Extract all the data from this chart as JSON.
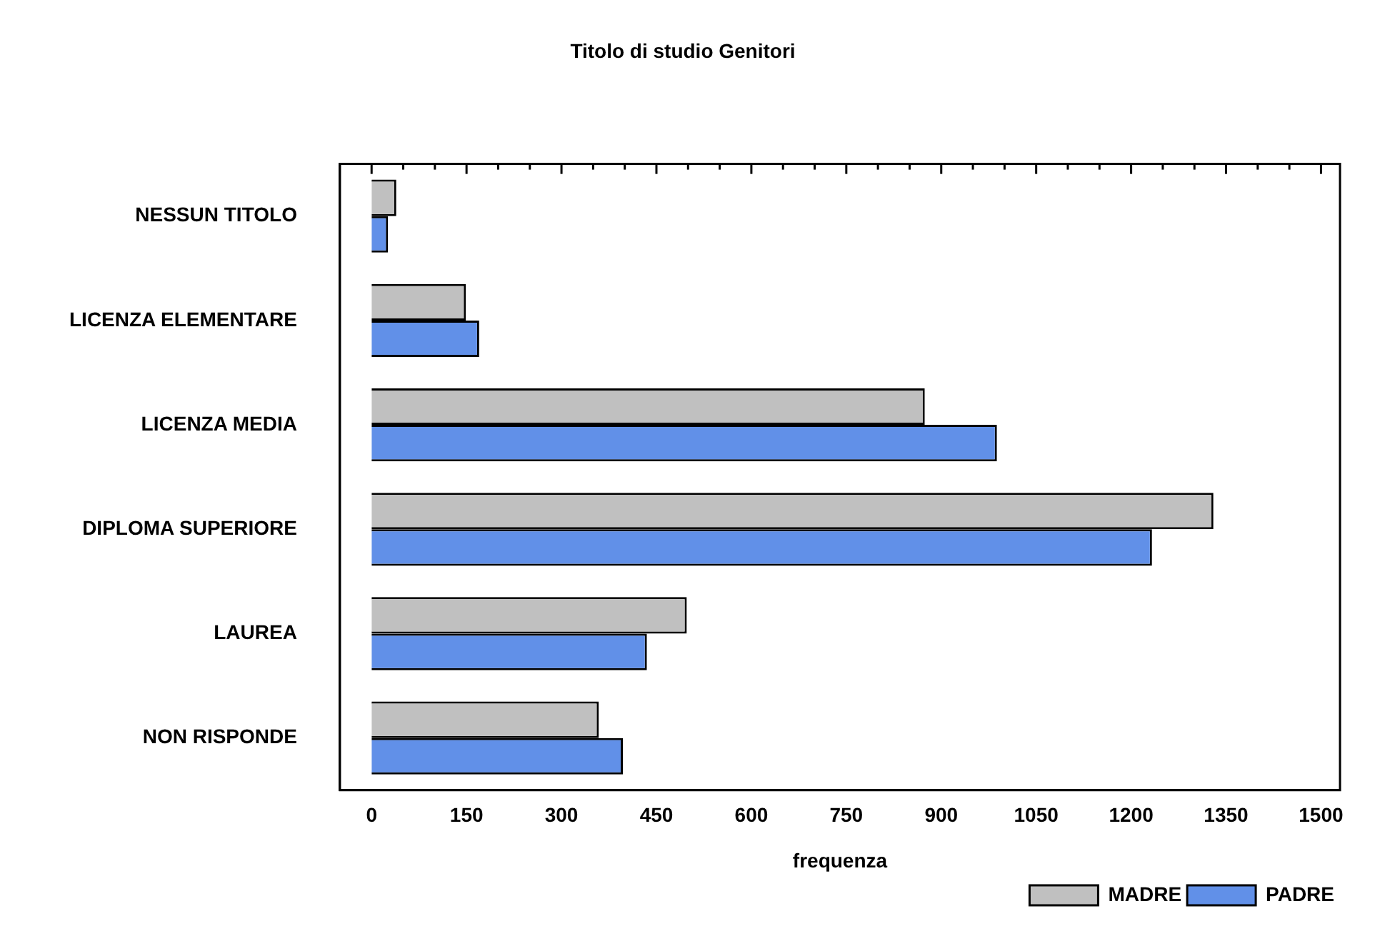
{
  "chart_data": {
    "type": "bar",
    "orientation": "horizontal",
    "title": "Titolo di studio Genitori",
    "xlabel": "frequenza",
    "categories": [
      "NESSUN TITOLO",
      "LICENZA ELEMENTARE",
      "LICENZA MEDIA",
      "DIPLOMA SUPERIORE",
      "LAUREA",
      "NON RISPONDE"
    ],
    "series": [
      {
        "name": "MADRE",
        "color": "#c0c0c0",
        "values": [
          39,
          149,
          874,
          1330,
          498,
          359
        ]
      },
      {
        "name": "PADRE",
        "color": "#6190e8",
        "values": [
          26,
          170,
          988,
          1233,
          435,
          397
        ]
      }
    ],
    "xlim": [
      -50,
      1530
    ],
    "xticks": [
      0,
      {
        "value": 50,
        "label": null
      },
      {
        "value": 100,
        "label": null
      },
      150,
      {
        "value": 200,
        "label": null
      },
      {
        "value": 250,
        "label": null
      },
      300,
      {
        "value": 350,
        "label": null
      },
      {
        "value": 400,
        "label": null
      },
      450,
      {
        "value": 500,
        "label": null
      },
      {
        "value": 550,
        "label": null
      },
      600,
      {
        "value": 650,
        "label": null
      },
      {
        "value": 700,
        "label": null
      },
      750,
      {
        "value": 800,
        "label": null
      },
      {
        "value": 850,
        "label": null
      },
      900,
      {
        "value": 950,
        "label": null
      },
      {
        "value": 1000,
        "label": null
      },
      1050,
      {
        "value": 1100,
        "label": null
      },
      {
        "value": 1150,
        "label": null
      },
      1200,
      {
        "value": 1250,
        "label": null
      },
      {
        "value": 1300,
        "label": null
      },
      1350,
      {
        "value": 1400,
        "label": null
      },
      {
        "value": 1450,
        "label": null
      },
      1500
    ],
    "grid": false,
    "legend": "bottom right"
  }
}
